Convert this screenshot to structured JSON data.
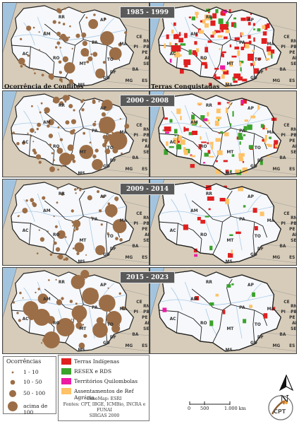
{
  "periods": [
    "1985 - 1999",
    "2000 - 2008",
    "2009 - 2014",
    "2015 - 2023"
  ],
  "captions": {
    "left": "Ocorrência de Conflitos",
    "right": "Terras Conquistadas"
  },
  "state_labels": [
    "AM",
    "PA",
    "MT",
    "RO",
    "AC",
    "RR",
    "AP",
    "MA",
    "TO",
    "CE",
    "PI",
    "RN",
    "PB",
    "PE",
    "AL",
    "SE",
    "BA",
    "GO",
    "DF",
    "MG",
    "MS",
    "ES"
  ],
  "legend": {
    "occ_title": "Ocorrências",
    "occ_items": [
      "1 - 10",
      "10 - 50",
      "50 - 100",
      "acima de 100"
    ],
    "territory_items": [
      {
        "label": "Terras Indígenas",
        "color": "#e02020"
      },
      {
        "label": "RESEX e RDS",
        "color": "#3aa32c"
      },
      {
        "label": "Territórios Quilombolas",
        "color": "#ee1aa4"
      },
      {
        "label": "Assentamentos de Ref Agrária",
        "color": "#ffc266"
      }
    ]
  },
  "basemap_lines": [
    "BaseMap: ESRI",
    "Fontes: CPT, IBGE, ICMBio, INCRA e",
    "FUNAI",
    "SIRGAS 2000"
  ],
  "north_label": "N",
  "scale_labels": [
    "0",
    "500",
    "1.000 km"
  ],
  "logo_text": "CPT",
  "colors": {
    "ocean": "#a3c4de",
    "land": "#d7ccb9",
    "amazon": "#f6f8fb",
    "dots": "#9c6e47",
    "border": "#222222",
    "rivers": "#9fc3e3"
  }
}
